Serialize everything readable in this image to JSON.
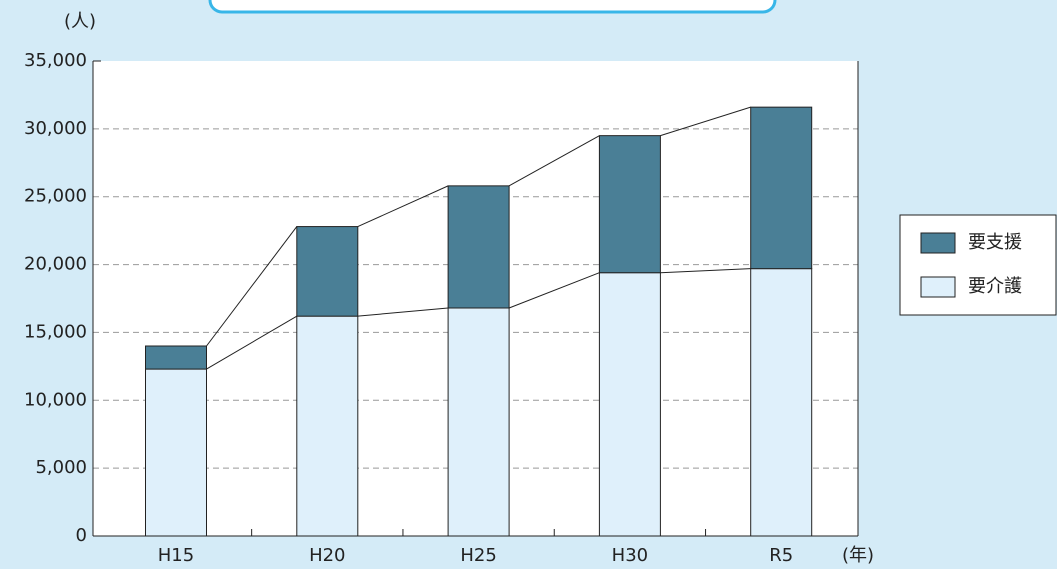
{
  "chart_data": {
    "type": "stacked_bar",
    "y_unit": "(人)",
    "x_unit": "(年)",
    "categories": [
      "H15",
      "H20",
      "H25",
      "H30",
      "R5"
    ],
    "series": [
      {
        "name": "要介護",
        "color": "#dff0fb",
        "values": [
          12300,
          16200,
          16800,
          19400,
          19700
        ]
      },
      {
        "name": "要支援",
        "color": "#4a7f96",
        "values": [
          1700,
          6600,
          9000,
          10100,
          11900
        ]
      }
    ],
    "ylim": [
      0,
      35000
    ],
    "yticks": [
      0,
      {
        "value": 5000,
        "label": "5,000"
      },
      {
        "value": 10000,
        "label": "10,000"
      },
      {
        "value": 15000,
        "label": "15,000"
      },
      {
        "value": 20000,
        "label": "20,000"
      },
      {
        "value": 25000,
        "label": "25,000"
      },
      {
        "value": 30000,
        "label": "30,000"
      },
      {
        "value": 35000,
        "label": "35,000"
      }
    ],
    "grid": true
  }
}
